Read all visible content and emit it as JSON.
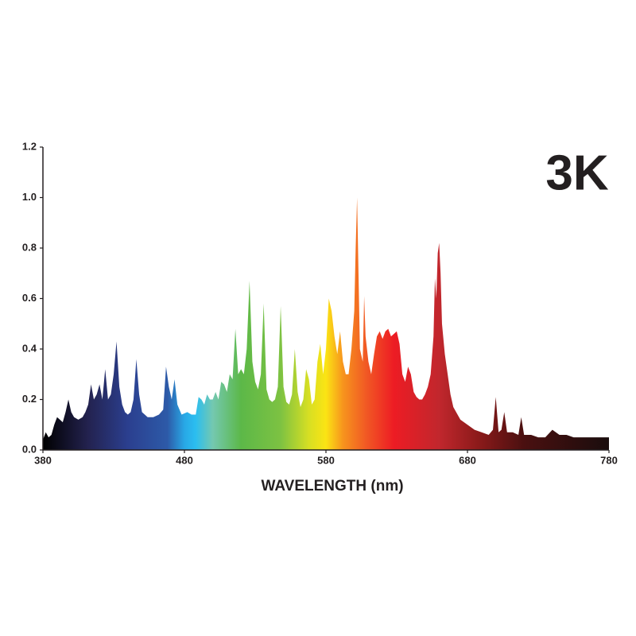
{
  "chart_data": {
    "type": "area",
    "annotation": "3K",
    "x_label": "WAVELENGTH (nm)",
    "x": [
      380,
      382,
      384,
      386,
      388,
      390,
      392,
      394,
      396,
      398,
      400,
      402,
      405,
      408,
      410,
      412,
      414,
      416,
      418,
      420,
      422,
      424,
      426,
      428,
      430,
      432,
      434,
      436,
      438,
      440,
      442,
      444,
      446,
      448,
      450,
      454,
      458,
      462,
      465,
      467,
      469,
      471,
      473,
      475,
      478,
      482,
      485,
      488,
      490,
      492,
      494,
      496,
      498,
      500,
      502,
      504,
      506,
      508,
      510,
      512,
      514,
      516,
      518,
      520,
      522,
      524,
      526,
      528,
      530,
      532,
      534,
      536,
      538,
      540,
      542,
      544,
      546,
      548,
      550,
      552,
      554,
      556,
      558,
      560,
      562,
      564,
      566,
      568,
      570,
      572,
      574,
      576,
      578,
      580,
      582,
      584,
      586,
      588,
      590,
      592,
      594,
      596,
      598,
      600,
      601,
      602,
      603,
      604,
      606,
      607,
      608,
      610,
      612,
      614,
      616,
      618,
      620,
      622,
      624,
      626,
      628,
      630,
      632,
      634,
      636,
      638,
      640,
      642,
      644,
      646,
      648,
      650,
      652,
      654,
      656,
      657,
      658,
      659,
      660,
      661,
      662,
      664,
      666,
      668,
      670,
      675,
      680,
      685,
      690,
      695,
      698,
      700,
      702,
      704,
      706,
      708,
      712,
      716,
      718,
      720,
      725,
      730,
      735,
      740,
      745,
      750,
      755,
      760,
      765,
      770,
      775,
      780
    ],
    "values": [
      0.04,
      0.07,
      0.05,
      0.06,
      0.1,
      0.13,
      0.12,
      0.11,
      0.15,
      0.2,
      0.15,
      0.13,
      0.12,
      0.13,
      0.15,
      0.18,
      0.26,
      0.2,
      0.22,
      0.26,
      0.2,
      0.32,
      0.2,
      0.22,
      0.3,
      0.43,
      0.25,
      0.18,
      0.15,
      0.14,
      0.15,
      0.2,
      0.36,
      0.22,
      0.15,
      0.13,
      0.13,
      0.14,
      0.16,
      0.33,
      0.25,
      0.2,
      0.28,
      0.18,
      0.14,
      0.15,
      0.14,
      0.14,
      0.21,
      0.2,
      0.18,
      0.22,
      0.2,
      0.2,
      0.23,
      0.2,
      0.27,
      0.26,
      0.23,
      0.3,
      0.28,
      0.48,
      0.3,
      0.32,
      0.3,
      0.4,
      0.67,
      0.35,
      0.27,
      0.24,
      0.3,
      0.58,
      0.24,
      0.2,
      0.19,
      0.2,
      0.25,
      0.57,
      0.25,
      0.19,
      0.18,
      0.22,
      0.4,
      0.23,
      0.17,
      0.2,
      0.32,
      0.28,
      0.18,
      0.2,
      0.35,
      0.42,
      0.3,
      0.4,
      0.6,
      0.55,
      0.45,
      0.38,
      0.47,
      0.35,
      0.3,
      0.3,
      0.4,
      0.55,
      0.8,
      1.0,
      0.7,
      0.4,
      0.35,
      0.61,
      0.45,
      0.35,
      0.3,
      0.38,
      0.45,
      0.47,
      0.44,
      0.47,
      0.48,
      0.45,
      0.46,
      0.47,
      0.42,
      0.3,
      0.27,
      0.33,
      0.3,
      0.23,
      0.21,
      0.2,
      0.2,
      0.22,
      0.25,
      0.3,
      0.45,
      0.68,
      0.6,
      0.78,
      0.82,
      0.7,
      0.5,
      0.38,
      0.3,
      0.22,
      0.17,
      0.12,
      0.1,
      0.08,
      0.07,
      0.06,
      0.08,
      0.21,
      0.07,
      0.08,
      0.15,
      0.07,
      0.07,
      0.06,
      0.13,
      0.06,
      0.06,
      0.05,
      0.05,
      0.08,
      0.06,
      0.06,
      0.05,
      0.05,
      0.05,
      0.05,
      0.05,
      0.05
    ],
    "xlim": [
      380,
      780
    ],
    "xticks": [
      380,
      480,
      580,
      680,
      780
    ],
    "ylim": [
      0,
      1.2
    ],
    "yticks": [
      {
        "value": 0,
        "label": "0.0"
      },
      0.2,
      0.4,
      0.6,
      0.8,
      {
        "value": 1,
        "label": "1.0"
      },
      1.2
    ]
  }
}
